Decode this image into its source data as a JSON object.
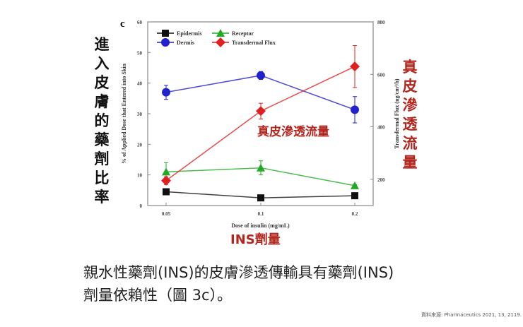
{
  "chart_data": {
    "type": "line",
    "panel_label": "c",
    "categories": [
      "0.05",
      "0.1",
      "0.2"
    ],
    "xlabel": "Dose of insulin (mg/mL)",
    "ylabel": "% of Applied Dose that Entered into Skin",
    "ylabel_right": "Transdermal Flux (ng/cm²/h)",
    "ylim": [
      0,
      60
    ],
    "yticks": [
      "0",
      "10",
      "20",
      "30",
      "40",
      "50",
      "60"
    ],
    "ylim_right": [
      100,
      800
    ],
    "yticks_right": [
      "200",
      "400",
      "600",
      "800"
    ],
    "legend_position": "top-left",
    "series": [
      {
        "name": "Epidermis",
        "color": "#111111",
        "marker": "square",
        "axis": "left",
        "values": [
          4.5,
          2.5,
          3.2
        ],
        "errors": [
          0.5,
          0.4,
          0.4
        ]
      },
      {
        "name": "Receptor",
        "color": "#22aa22",
        "marker": "triangle",
        "axis": "left",
        "values": [
          11,
          12.3,
          6.5
        ],
        "errors": [
          3,
          2.3,
          0.3
        ]
      },
      {
        "name": "Dermis",
        "color": "#2222cc",
        "marker": "circle",
        "axis": "left",
        "values": [
          37,
          42.5,
          31.3
        ],
        "errors": [
          2.3,
          1.3,
          4.3
        ]
      },
      {
        "name": "Transdermal Flux",
        "color": "#e02020",
        "marker": "diamond",
        "axis": "right",
        "values": [
          195,
          460,
          630
        ],
        "errors": [
          15,
          30,
          80
        ]
      }
    ]
  },
  "annotations": {
    "left_label": "進入皮膚的藥劑比率",
    "right_label": "真皮滲透流量",
    "flux_label": "真皮滲透流量",
    "x_label": "INS劑量"
  },
  "caption": {
    "line1": "親水性藥劑(INS)的皮膚滲透傳輸具有藥劑(INS)",
    "line2": "劑量依賴性（圖 3c）。"
  },
  "source": "資料來源: Pharmaceutics 2021, 13, 2119."
}
